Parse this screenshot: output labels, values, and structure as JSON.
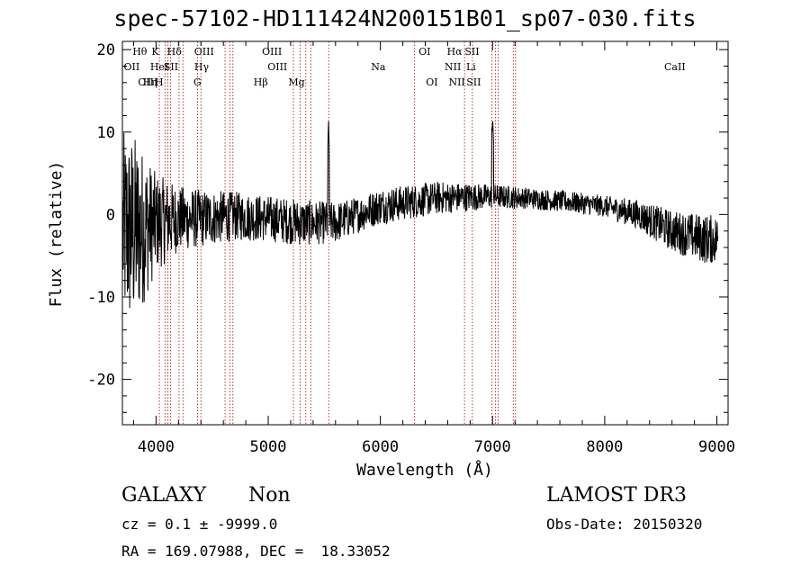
{
  "header": {
    "title": "spec-57102-HD111424N200151B01_sp07-030.fits"
  },
  "info": {
    "class": "GALAXY",
    "subclass": "Non",
    "survey": "LAMOST DR3",
    "cz_line": "cz = 0.1 ± -9999.0",
    "obs_date": "Obs-Date: 20150320",
    "coords": "RA = 169.07988, DEC =  18.33052"
  },
  "chart_data": {
    "type": "line",
    "title": "spec-57102-HD111424N200151B01_sp07-030.fits",
    "xlabel": "Wavelength (Å)",
    "ylabel": "Flux (relative)",
    "xlim": [
      3700,
      9100
    ],
    "ylim": [
      -25.5,
      21
    ],
    "xticks": [
      4000,
      5000,
      6000,
      7000,
      8000,
      9000
    ],
    "yticks": [
      -20,
      -10,
      0,
      10,
      20
    ],
    "grid": false,
    "line_color": "#000000",
    "marker_color": "#b22222",
    "emission_lines": [
      {
        "name": "OII",
        "wavelength": 3727,
        "row": 2
      },
      {
        "name": "Hθ",
        "wavelength": 3798,
        "row": 1
      },
      {
        "name": "OIII",
        "wavelength": 3869,
        "row": 3
      },
      {
        "name": "Hη",
        "wavelength": 3889,
        "row": 3
      },
      {
        "name": "HeI",
        "wavelength": 3970,
        "row": 2
      },
      {
        "name": "K",
        "wavelength": 3934,
        "row": 1
      },
      {
        "name": "H",
        "wavelength": 3968,
        "row": 3
      },
      {
        "name": "Hδ",
        "wavelength": 4102,
        "row": 1
      },
      {
        "name": "SII",
        "wavelength": 4072,
        "row": 2
      },
      {
        "name": "OIII",
        "wavelength": 4363,
        "row": 1
      },
      {
        "name": "Hγ",
        "wavelength": 4341,
        "row": 2
      },
      {
        "name": "G",
        "wavelength": 4304,
        "row": 3
      },
      {
        "name": "OIII",
        "wavelength": 4959,
        "row": 1
      },
      {
        "name": "OIII",
        "wavelength": 5007,
        "row": 2
      },
      {
        "name": "Hβ",
        "wavelength": 4861,
        "row": 3
      },
      {
        "name": "Mg",
        "wavelength": 5175,
        "row": 3
      },
      {
        "name": "Na",
        "wavelength": 5893,
        "row": 2
      },
      {
        "name": "OI",
        "wavelength": 6300,
        "row": 1
      },
      {
        "name": "OI",
        "wavelength": 6364,
        "row": 3
      },
      {
        "name": "Hα",
        "wavelength": 6563,
        "row": 1
      },
      {
        "name": "NII",
        "wavelength": 6548,
        "row": 2
      },
      {
        "name": "NII",
        "wavelength": 6583,
        "row": 3
      },
      {
        "name": "SII",
        "wavelength": 6716,
        "row": 1
      },
      {
        "name": "Li",
        "wavelength": 6708,
        "row": 2
      },
      {
        "name": "SII",
        "wavelength": 6731,
        "row": 3
      },
      {
        "name": "CaII",
        "wavelength": 8498,
        "row": 2
      }
    ],
    "emission_line_positions_note": "label positions approximate observed (redshifted) wavelengths",
    "marker_wavelengths": [
      4030,
      4080,
      4105,
      4130,
      4205,
      4240,
      4370,
      4400,
      4615,
      4660,
      4685,
      5225,
      5285,
      5335,
      5380,
      5540,
      6305,
      6750,
      6820,
      6995,
      7025,
      7050,
      7185,
      7205
    ],
    "spectrum_shape": {
      "x": [
        3700,
        3800,
        3900,
        4000,
        4200,
        4400,
        4700,
        5000,
        5300,
        5600,
        5800,
        6000,
        6500,
        7000,
        7300,
        7700,
        8000,
        8300,
        8600,
        8900,
        9000
      ],
      "y": [
        -2,
        -2,
        -1.5,
        -1,
        -0.5,
        -0.5,
        -0.2,
        -0.5,
        -1,
        -1,
        0,
        1,
        2,
        2.2,
        2,
        1.5,
        1,
        0,
        -2,
        -3,
        -3
      ],
      "noise_amplitude": [
        12,
        12,
        9,
        6,
        4,
        3.5,
        3,
        2.8,
        2.8,
        2.5,
        2.2,
        2.2,
        2,
        1.5,
        1.3,
        1.3,
        1.3,
        1.8,
        2.5,
        3,
        3
      ]
    }
  }
}
